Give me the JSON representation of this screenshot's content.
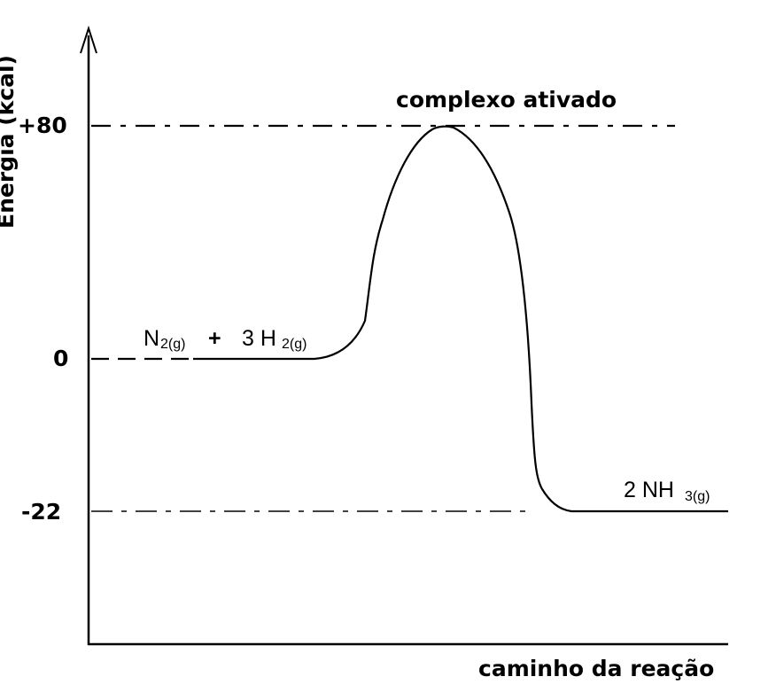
{
  "diagram": {
    "y_axis_label": "Energia (kcal)",
    "x_axis_label": "caminho da reação",
    "levels": [
      {
        "value": 80,
        "tick_label": "+80"
      },
      {
        "value": 0,
        "tick_label": "0"
      },
      {
        "value": -22,
        "tick_label": "-22"
      }
    ],
    "peak_label": "complexo ativado",
    "reactants": {
      "n_base": "N",
      "n_sub": "2(g)",
      "plus": "+",
      "h_base": "3 H",
      "h_sub": "2(g)"
    },
    "products": {
      "base": "2 NH",
      "sub": "3(g)"
    },
    "colors": {
      "line": "#000000",
      "background": "#ffffff"
    }
  }
}
